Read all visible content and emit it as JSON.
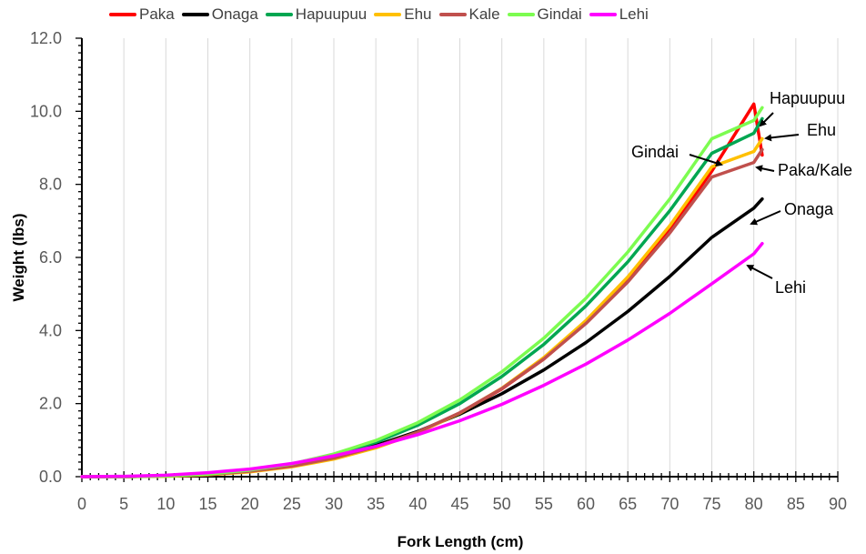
{
  "chart_data": {
    "type": "line",
    "xlabel": "Fork Length (cm)",
    "ylabel": "Weight (lbs)",
    "xlim": [
      0,
      90
    ],
    "ylim": [
      0,
      12
    ],
    "x_ticks": [
      "0",
      "5",
      "10",
      "15",
      "20",
      "25",
      "30",
      "35",
      "40",
      "45",
      "50",
      "55",
      "60",
      "65",
      "70",
      "75",
      "80",
      "85",
      "90"
    ],
    "y_ticks": [
      "0.0",
      "2.0",
      "4.0",
      "6.0",
      "8.0",
      "10.0",
      "12.0"
    ],
    "grid": "vertical",
    "legend_position": "top",
    "x": [
      0,
      5,
      10,
      15,
      20,
      25,
      30,
      35,
      40,
      45,
      50,
      55,
      60,
      65,
      70,
      75,
      80,
      81
    ],
    "series": [
      {
        "name": "Paka",
        "color": "#ff0000",
        "values": [
          0,
          0.0,
          0.02,
          0.06,
          0.15,
          0.29,
          0.51,
          0.81,
          1.21,
          1.74,
          2.4,
          3.22,
          4.21,
          5.38,
          6.76,
          8.36,
          10.2,
          8.8
        ]
      },
      {
        "name": "Onaga",
        "color": "#000000",
        "values": [
          0,
          0.0,
          0.02,
          0.07,
          0.17,
          0.33,
          0.56,
          0.86,
          1.24,
          1.71,
          2.27,
          2.92,
          3.67,
          4.52,
          5.48,
          6.55,
          7.35,
          7.6
        ]
      },
      {
        "name": "Hapuupuu",
        "color": "#00a651",
        "values": [
          0,
          0.0,
          0.02,
          0.07,
          0.17,
          0.34,
          0.59,
          0.94,
          1.41,
          2.0,
          2.74,
          3.62,
          4.67,
          5.88,
          7.28,
          8.85,
          9.4,
          9.8
        ]
      },
      {
        "name": "Ehu",
        "color": "#ffc000",
        "values": [
          0,
          0.0,
          0.01,
          0.05,
          0.13,
          0.27,
          0.48,
          0.79,
          1.2,
          1.74,
          2.42,
          3.26,
          4.27,
          5.47,
          6.87,
          8.48,
          8.9,
          9.25
        ]
      },
      {
        "name": "Kale",
        "color": "#c0504d",
        "values": [
          0,
          0.0,
          0.02,
          0.06,
          0.15,
          0.29,
          0.51,
          0.82,
          1.22,
          1.75,
          2.41,
          3.22,
          4.19,
          5.33,
          6.67,
          8.2,
          8.6,
          8.95
        ]
      },
      {
        "name": "Gindai",
        "color": "#7cfc50",
        "values": [
          0,
          0.0,
          0.02,
          0.07,
          0.18,
          0.35,
          0.62,
          0.99,
          1.48,
          2.1,
          2.87,
          3.79,
          4.88,
          6.15,
          7.6,
          9.25,
          9.75,
          10.1
        ]
      },
      {
        "name": "Lehi",
        "color": "#ff00ff",
        "values": [
          0,
          0.01,
          0.04,
          0.11,
          0.21,
          0.36,
          0.57,
          0.83,
          1.15,
          1.53,
          1.98,
          2.5,
          3.08,
          3.74,
          4.47,
          5.28,
          6.1,
          6.38
        ]
      }
    ],
    "annotations": [
      "Hapuupuu",
      "Ehu",
      "Paka/Kale",
      "Onaga",
      "Lehi",
      "Gindai"
    ]
  }
}
